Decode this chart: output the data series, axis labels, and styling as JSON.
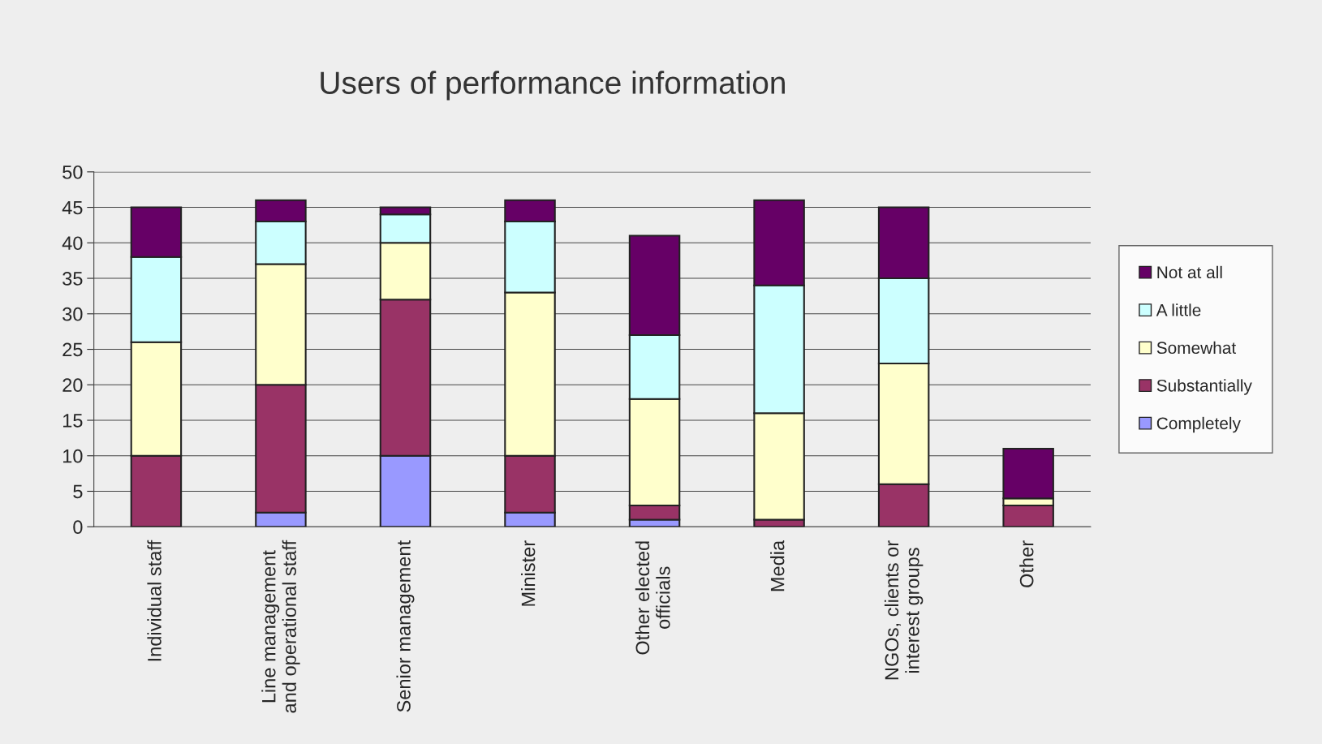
{
  "chart_data": {
    "type": "bar",
    "title": "Users of performance information",
    "stacked": true,
    "categories": [
      "Individual staff",
      "Line management\nand operational staff",
      "Senior management",
      "Minister",
      "Other elected\nofficials",
      "Media",
      "NGOs, clients or\ninterest groups",
      "Other"
    ],
    "series": [
      {
        "name": "Completely",
        "color": "#9999ff",
        "values": [
          0,
          2,
          10,
          2,
          1,
          0,
          0,
          0
        ]
      },
      {
        "name": "Substantially",
        "color": "#993366",
        "values": [
          10,
          18,
          22,
          8,
          2,
          1,
          6,
          3
        ]
      },
      {
        "name": "Somewhat",
        "color": "#ffffcc",
        "values": [
          16,
          17,
          8,
          23,
          15,
          15,
          17,
          1
        ]
      },
      {
        "name": "A little",
        "color": "#ccffff",
        "values": [
          12,
          6,
          4,
          10,
          9,
          18,
          12,
          0
        ]
      },
      {
        "name": "Not at all",
        "color": "#660066",
        "values": [
          7,
          3,
          1,
          3,
          14,
          12,
          10,
          7
        ]
      }
    ],
    "ylim": [
      0,
      50
    ],
    "yticks": [
      0,
      5,
      10,
      15,
      20,
      25,
      30,
      35,
      40,
      45,
      50
    ],
    "grid": "y",
    "legend": "right"
  }
}
